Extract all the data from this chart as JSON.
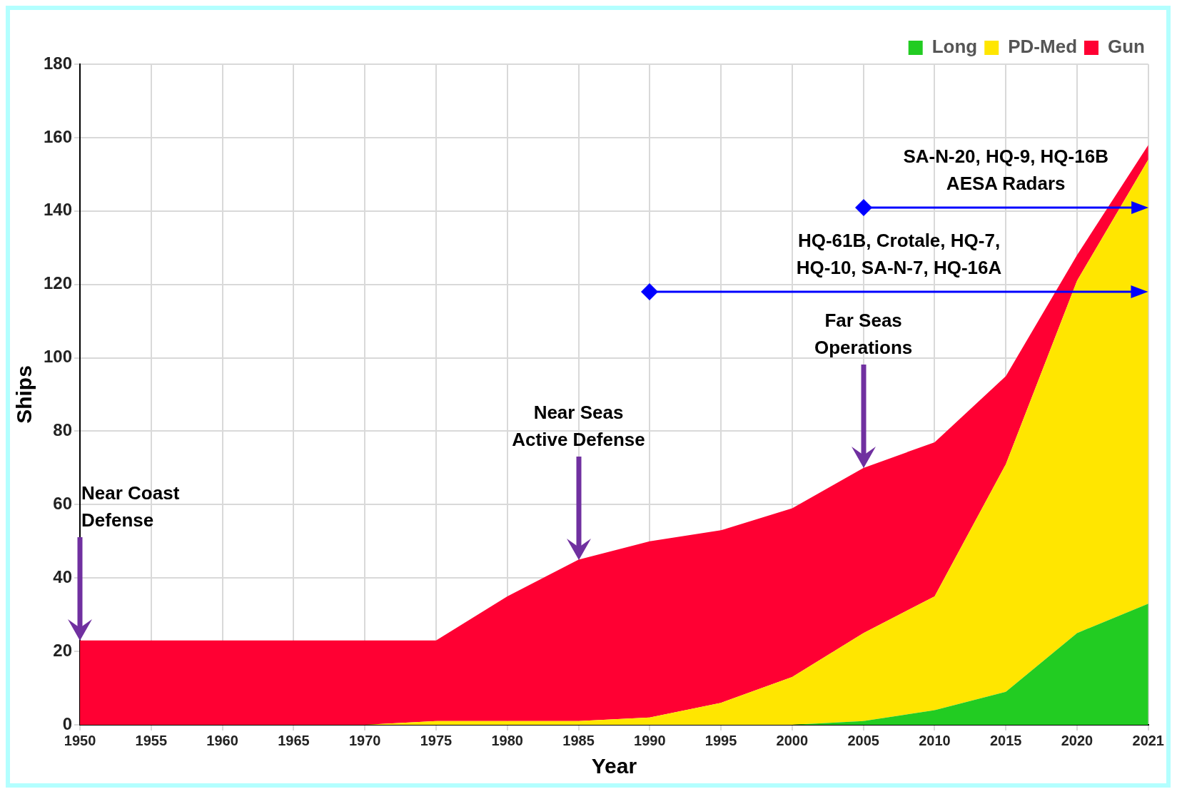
{
  "chart_data": {
    "type": "area",
    "stacked": true,
    "xlabel": "Year",
    "ylabel": "Ships",
    "categories": [
      "1950",
      "1955",
      "1960",
      "1965",
      "1970",
      "1975",
      "1980",
      "1985",
      "1990",
      "1995",
      "2000",
      "2005",
      "2010",
      "2015",
      "2020",
      "2021"
    ],
    "series": [
      {
        "name": "Long",
        "color": "#22cc22",
        "values": [
          0,
          0,
          0,
          0,
          0,
          0,
          0,
          0,
          0,
          0,
          0,
          1,
          4,
          9,
          25,
          33
        ]
      },
      {
        "name": "PD-Med",
        "color": "#ffe600",
        "values": [
          0,
          0,
          0,
          0,
          0,
          1,
          1,
          1,
          2,
          6,
          13,
          24,
          31,
          62,
          96,
          121
        ]
      },
      {
        "name": "Gun",
        "color": "#ff0033",
        "values": [
          23,
          23,
          23,
          23,
          23,
          22,
          34,
          44,
          48,
          47,
          46,
          45,
          42,
          24,
          7,
          4
        ]
      }
    ],
    "ylim": [
      0,
      180
    ],
    "yticks": [
      0,
      20,
      40,
      60,
      80,
      100,
      120,
      140,
      160,
      180
    ],
    "grid": true,
    "legend": "top right",
    "annotations": [
      "Near Coast\nDefense",
      "Near Seas\nActive Defense",
      "Far Seas\nOperations",
      "HQ-61B, Crotale, HQ-7,\nHQ-10, SA-N-7, HQ-16A",
      "SA-N-20, HQ-9, HQ-16B\nAESA Radars"
    ]
  }
}
